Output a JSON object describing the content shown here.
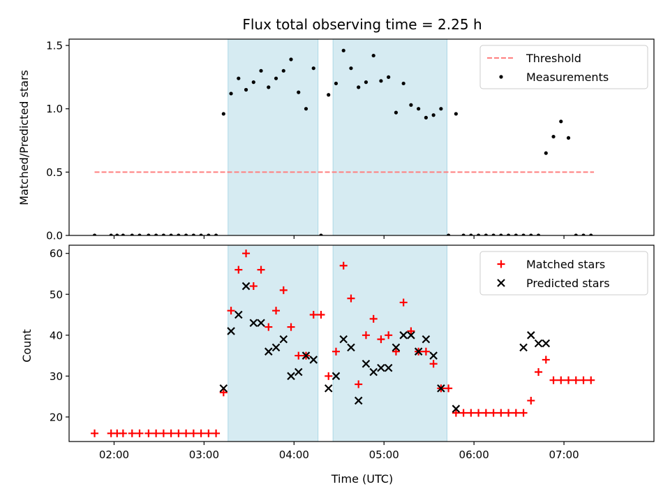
{
  "chart_data": [
    {
      "type": "scatter",
      "title": "Flux total observing time = 2.25 h",
      "ylabel": "Matched/Predicted stars",
      "xlim": [
        "01:30",
        "08:00"
      ],
      "ylim": [
        0,
        1.55
      ],
      "yticks": [
        0.0,
        0.5,
        1.0,
        1.5
      ],
      "ytick_labels": [
        "0.0",
        "0.5",
        "1.0",
        "1.5"
      ],
      "shaded_intervals": [
        [
          "03:16",
          "04:16"
        ],
        [
          "04:26",
          "05:42"
        ]
      ],
      "legend_position": "top-right",
      "series": [
        {
          "name": "Threshold",
          "style": "dashed-line",
          "color": "#ff7f7f",
          "x": [
            "01:47",
            "07:20"
          ],
          "y": [
            0.5,
            0.5
          ]
        },
        {
          "name": "Measurements",
          "style": "dot",
          "color": "#000000",
          "x": [
            "01:47",
            "01:58",
            "02:02",
            "02:06",
            "02:12",
            "02:17",
            "02:23",
            "02:28",
            "02:33",
            "02:38",
            "02:43",
            "02:48",
            "02:53",
            "02:58",
            "03:03",
            "03:08",
            "03:13",
            "03:18",
            "03:23",
            "03:28",
            "03:33",
            "03:38",
            "03:43",
            "03:48",
            "03:53",
            "03:58",
            "04:03",
            "04:08",
            "04:13",
            "04:18",
            "04:23",
            "04:28",
            "04:33",
            "04:38",
            "04:43",
            "04:48",
            "04:53",
            "04:58",
            "05:03",
            "05:08",
            "05:13",
            "05:18",
            "05:23",
            "05:28",
            "05:33",
            "05:38",
            "05:43",
            "05:48",
            "05:53",
            "05:58",
            "06:03",
            "06:08",
            "06:13",
            "06:18",
            "06:23",
            "06:28",
            "06:33",
            "06:38",
            "06:43",
            "06:48",
            "06:53",
            "06:58",
            "07:03",
            "07:08",
            "07:13",
            "07:18"
          ],
          "y": [
            0,
            0,
            0,
            0,
            0,
            0,
            0,
            0,
            0,
            0,
            0,
            0,
            0,
            0,
            0,
            0,
            0.96,
            1.12,
            1.24,
            1.15,
            1.21,
            1.3,
            1.17,
            1.24,
            1.3,
            1.39,
            1.13,
            1.0,
            1.32,
            0,
            1.11,
            1.2,
            1.46,
            1.32,
            1.17,
            1.21,
            1.42,
            1.22,
            1.25,
            0.97,
            1.2,
            1.03,
            1.0,
            0.93,
            0.95,
            1.0,
            0,
            0.96,
            0,
            0,
            0,
            0,
            0,
            0,
            0,
            0,
            0,
            0,
            0,
            0.65,
            0.78,
            0.9,
            0.77,
            0,
            0,
            0
          ]
        }
      ]
    },
    {
      "type": "scatter",
      "xlabel": "Time (UTC)",
      "ylabel": "Count",
      "xlim": [
        "01:30",
        "08:00"
      ],
      "ylim": [
        14,
        62
      ],
      "xticks": [
        "02:00",
        "03:00",
        "04:00",
        "05:00",
        "06:00",
        "07:00"
      ],
      "yticks": [
        20,
        30,
        40,
        50,
        60
      ],
      "ytick_labels": [
        "20",
        "30",
        "40",
        "50",
        "60"
      ],
      "shaded_intervals": [
        [
          "03:16",
          "04:16"
        ],
        [
          "04:26",
          "05:42"
        ]
      ],
      "legend_position": "top-right",
      "series": [
        {
          "name": "Matched stars",
          "marker": "plus",
          "color": "#ff0000",
          "x": [
            "01:47",
            "01:58",
            "02:02",
            "02:06",
            "02:12",
            "02:17",
            "02:23",
            "02:28",
            "02:33",
            "02:38",
            "02:43",
            "02:48",
            "02:53",
            "02:58",
            "03:03",
            "03:08",
            "03:13",
            "03:18",
            "03:23",
            "03:28",
            "03:33",
            "03:38",
            "03:43",
            "03:48",
            "03:53",
            "03:58",
            "04:03",
            "04:08",
            "04:13",
            "04:18",
            "04:23",
            "04:28",
            "04:33",
            "04:38",
            "04:43",
            "04:48",
            "04:53",
            "04:58",
            "05:03",
            "05:08",
            "05:13",
            "05:18",
            "05:23",
            "05:28",
            "05:33",
            "05:38",
            "05:43",
            "05:48",
            "05:53",
            "05:58",
            "06:03",
            "06:08",
            "06:13",
            "06:18",
            "06:23",
            "06:28",
            "06:33",
            "06:38",
            "06:43",
            "06:48",
            "06:53",
            "06:58",
            "07:03",
            "07:08",
            "07:13",
            "07:18"
          ],
          "y": [
            16,
            16,
            16,
            16,
            16,
            16,
            16,
            16,
            16,
            16,
            16,
            16,
            16,
            16,
            16,
            16,
            26,
            46,
            56,
            60,
            52,
            56,
            42,
            46,
            51,
            42,
            35,
            35,
            45,
            45,
            30,
            36,
            57,
            49,
            28,
            40,
            44,
            39,
            40,
            36,
            48,
            41,
            36,
            36,
            33,
            27,
            27,
            21,
            21,
            21,
            21,
            21,
            21,
            21,
            21,
            21,
            21,
            24,
            31,
            34,
            29,
            29,
            29,
            29,
            29,
            29
          ]
        },
        {
          "name": "Predicted stars",
          "marker": "x",
          "color": "#000000",
          "x": [
            "03:13",
            "03:18",
            "03:23",
            "03:28",
            "03:33",
            "03:38",
            "03:43",
            "03:48",
            "03:53",
            "03:58",
            "04:03",
            "04:08",
            "04:13",
            "04:23",
            "04:28",
            "04:33",
            "04:38",
            "04:43",
            "04:48",
            "04:53",
            "04:58",
            "05:03",
            "05:08",
            "05:13",
            "05:18",
            "05:23",
            "05:28",
            "05:33",
            "05:38",
            "05:48",
            "06:33",
            "06:38",
            "06:43",
            "06:48"
          ],
          "y": [
            27,
            41,
            45,
            52,
            43,
            43,
            36,
            37,
            39,
            30,
            31,
            35,
            34,
            27,
            30,
            39,
            37,
            24,
            33,
            31,
            32,
            32,
            37,
            40,
            40,
            36,
            39,
            35,
            27,
            22,
            37,
            40,
            38,
            38
          ]
        }
      ]
    }
  ]
}
